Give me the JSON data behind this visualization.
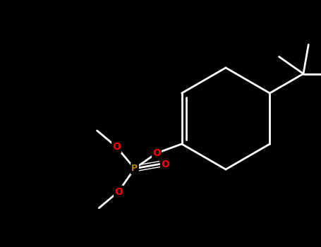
{
  "bg_color": "#000000",
  "bond_color": "#ffffff",
  "O_color": "#ff0000",
  "P_color": "#b8860b",
  "line_width": 2.0,
  "font_size": 10,
  "figsize": [
    4.55,
    3.5
  ],
  "dpi": 100,
  "canvas_xlim": [
    0,
    455
  ],
  "canvas_ylim": [
    0,
    350
  ]
}
